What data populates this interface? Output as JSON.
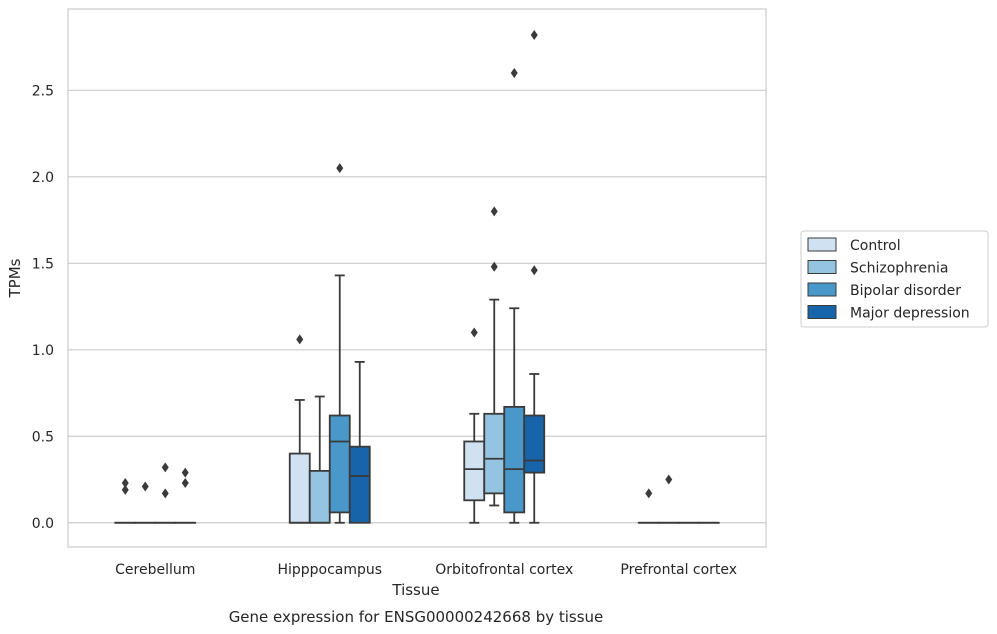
{
  "chart_data": {
    "type": "box",
    "title": "",
    "caption": "Gene expression for ENSG00000242668 by tissue",
    "xlabel": "Tissue",
    "ylabel": "TPMs",
    "ylim": [
      -0.14,
      2.97
    ],
    "yticks": [
      0.0,
      0.5,
      1.0,
      1.5,
      2.0,
      2.5
    ],
    "ytick_labels": [
      "0.0",
      "0.5",
      "1.0",
      "1.5",
      "2.0",
      "2.5"
    ],
    "grid": "horizontal",
    "legend_position": "right",
    "categories": [
      "Cerebellum",
      "Hipppocampus",
      "Orbitofrontal cortex",
      "Prefrontal cortex"
    ],
    "series": [
      {
        "name": "Control",
        "color": "#d0e1f2",
        "boxes": [
          {
            "q1": 0,
            "median": 0,
            "q3": 0,
            "whisker_low": 0,
            "whisker_high": 0,
            "outliers": [
              0.19,
              0.23
            ]
          },
          {
            "q1": 0,
            "median": 0,
            "q3": 0.4,
            "whisker_low": 0,
            "whisker_high": 0.71,
            "outliers": [
              1.06
            ]
          },
          {
            "q1": 0.13,
            "median": 0.31,
            "q3": 0.47,
            "whisker_low": 0,
            "whisker_high": 0.63,
            "outliers": [
              1.1
            ]
          },
          {
            "q1": 0,
            "median": 0,
            "q3": 0,
            "whisker_low": 0,
            "whisker_high": 0,
            "outliers": [
              0.17
            ]
          }
        ]
      },
      {
        "name": "Schizophrenia",
        "color": "#94c4df",
        "boxes": [
          {
            "q1": 0,
            "median": 0,
            "q3": 0,
            "whisker_low": 0,
            "whisker_high": 0,
            "outliers": [
              0.21
            ]
          },
          {
            "q1": 0,
            "median": 0,
            "q3": 0.3,
            "whisker_low": 0,
            "whisker_high": 0.73,
            "outliers": []
          },
          {
            "q1": 0.17,
            "median": 0.37,
            "q3": 0.63,
            "whisker_low": 0.1,
            "whisker_high": 1.29,
            "outliers": [
              1.48,
              1.8
            ]
          },
          {
            "q1": 0,
            "median": 0,
            "q3": 0,
            "whisker_low": 0,
            "whisker_high": 0,
            "outliers": [
              0.25
            ]
          }
        ]
      },
      {
        "name": "Bipolar disorder",
        "color": "#4a98c9",
        "boxes": [
          {
            "q1": 0,
            "median": 0,
            "q3": 0,
            "whisker_low": 0,
            "whisker_high": 0,
            "outliers": [
              0.17,
              0.32
            ]
          },
          {
            "q1": 0.06,
            "median": 0.47,
            "q3": 0.62,
            "whisker_low": 0,
            "whisker_high": 1.43,
            "outliers": [
              2.05
            ]
          },
          {
            "q1": 0.06,
            "median": 0.31,
            "q3": 0.67,
            "whisker_low": 0,
            "whisker_high": 1.24,
            "outliers": [
              2.6
            ]
          },
          {
            "q1": 0,
            "median": 0,
            "q3": 0,
            "whisker_low": 0,
            "whisker_high": 0,
            "outliers": []
          }
        ]
      },
      {
        "name": "Major depression",
        "color": "#1764ab",
        "boxes": [
          {
            "q1": 0,
            "median": 0,
            "q3": 0,
            "whisker_low": 0,
            "whisker_high": 0,
            "outliers": [
              0.23,
              0.29
            ]
          },
          {
            "q1": 0,
            "median": 0.27,
            "q3": 0.44,
            "whisker_low": 0,
            "whisker_high": 0.93,
            "outliers": []
          },
          {
            "q1": 0.29,
            "median": 0.36,
            "q3": 0.62,
            "whisker_low": 0,
            "whisker_high": 0.86,
            "outliers": [
              1.46,
              2.82
            ]
          },
          {
            "q1": 0,
            "median": 0,
            "q3": 0,
            "whisker_low": 0,
            "whisker_high": 0,
            "outliers": []
          }
        ]
      }
    ]
  }
}
